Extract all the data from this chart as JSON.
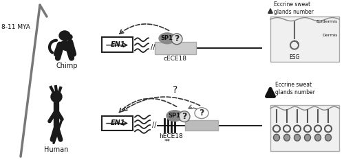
{
  "bg_color": "#ffffff",
  "tc": "#111111",
  "gray_line": "#888888",
  "dark": "#222222",
  "fig_width": 5.0,
  "fig_height": 2.33,
  "dpi": 100,
  "mya_label": "8-11 MYA",
  "chimp_label": "Chimp",
  "human_label": "Human",
  "en1_label": "EN1",
  "cece18_label": "cECE18",
  "hece18_label": "hECE18",
  "sp1_label": "SP1",
  "esg_label": "ESG",
  "epidermis_label": "Epidermis",
  "dermis_label": "Dermis",
  "eccrine_top": "Eccrine sweat\nglands number",
  "eccrine_bot": "Eccrine sweat\nglands number",
  "q": "?",
  "ast": "**"
}
